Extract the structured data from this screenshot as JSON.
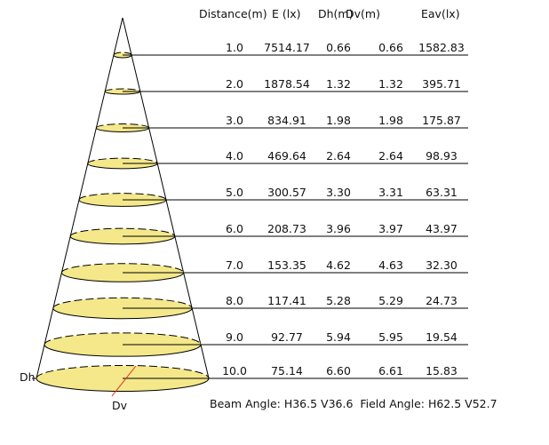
{
  "header": {
    "columns": [
      "Distance(m)",
      "E (lx)",
      "Dh(m)",
      "Dv(m)",
      "Eav(lx)"
    ]
  },
  "rows": [
    [
      "1.0",
      "7514.17",
      "0.66",
      "0.66",
      "1582.83"
    ],
    [
      "2.0",
      "1878.54",
      "1.32",
      "1.32",
      "395.71"
    ],
    [
      "3.0",
      "834.91",
      "1.98",
      "1.98",
      "175.87"
    ],
    [
      "4.0",
      "469.64",
      "2.64",
      "2.64",
      "98.93"
    ],
    [
      "5.0",
      "300.57",
      "3.30",
      "3.31",
      "63.31"
    ],
    [
      "6.0",
      "208.73",
      "3.96",
      "3.97",
      "43.97"
    ],
    [
      "7.0",
      "153.35",
      "4.62",
      "4.63",
      "32.30"
    ],
    [
      "8.0",
      "117.41",
      "5.28",
      "5.29",
      "24.73"
    ],
    [
      "9.0",
      "92.77",
      "5.94",
      "5.95",
      "19.54"
    ],
    [
      "10.0",
      "75.14",
      "6.60",
      "6.61",
      "15.83"
    ]
  ],
  "labels": {
    "dh": "Dh",
    "dv": "Dv"
  },
  "footer": "Beam Angle: H36.5 V36.6  Field Angle: H62.5 V52.7"
}
